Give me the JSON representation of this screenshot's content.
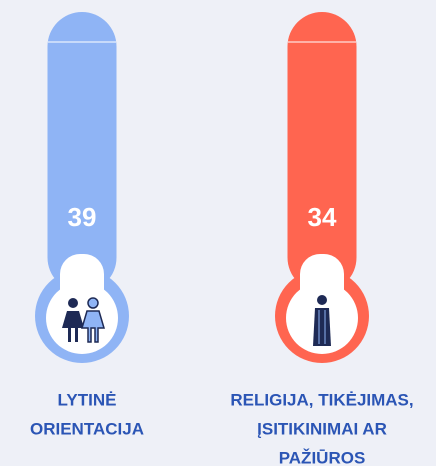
{
  "items": [
    {
      "value": "39",
      "label": [
        "LYTINĖ",
        "ORIENTACIJA"
      ],
      "color": "#8fb4f5"
    },
    {
      "value": "34",
      "label": [
        "RELIGIJA, TIKĖJIMAS,",
        "ĮSITIKINIMAI AR",
        "PAŽIŪROS"
      ],
      "color": "#ff6550"
    }
  ]
}
